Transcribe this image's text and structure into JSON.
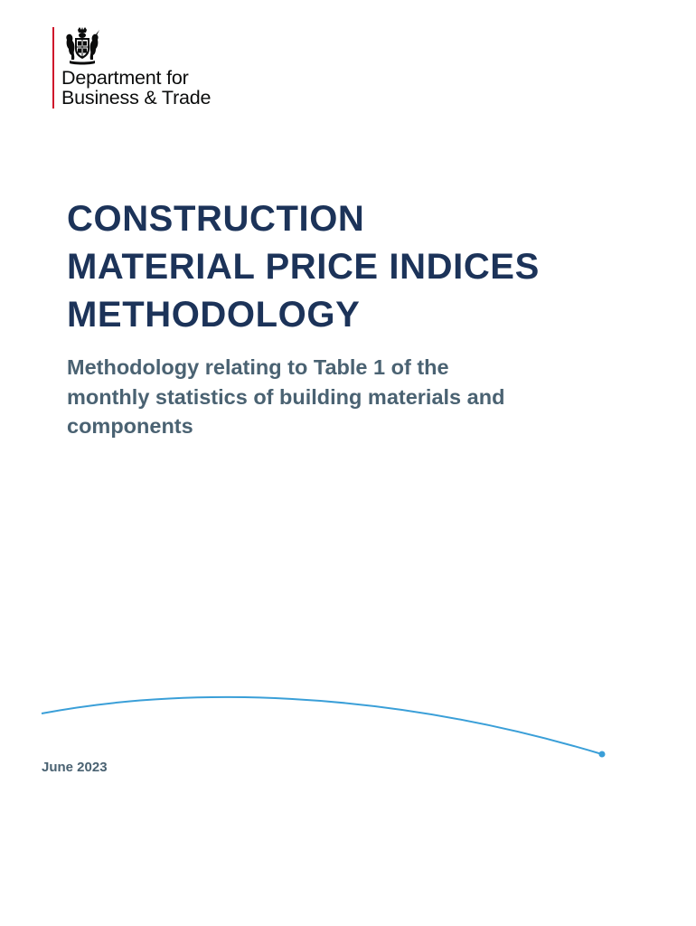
{
  "logo": {
    "crest_icon": "royal-coat-of-arms-icon",
    "line1": "Department for",
    "line2": "Business & Trade",
    "rule_color": "#cf142b"
  },
  "title": {
    "line1": "CONSTRUCTION",
    "line2": "MATERIAL PRICE INDICES",
    "line3": "METHODOLOGY",
    "color": "#1c3359"
  },
  "subtitle": {
    "line1": "Methodology relating to Table 1 of the",
    "line2": "monthly statistics of building materials and",
    "line3": "components",
    "color": "#4a6272"
  },
  "decoration": {
    "arc_color": "#3a9fd8"
  },
  "date": "June 2023"
}
